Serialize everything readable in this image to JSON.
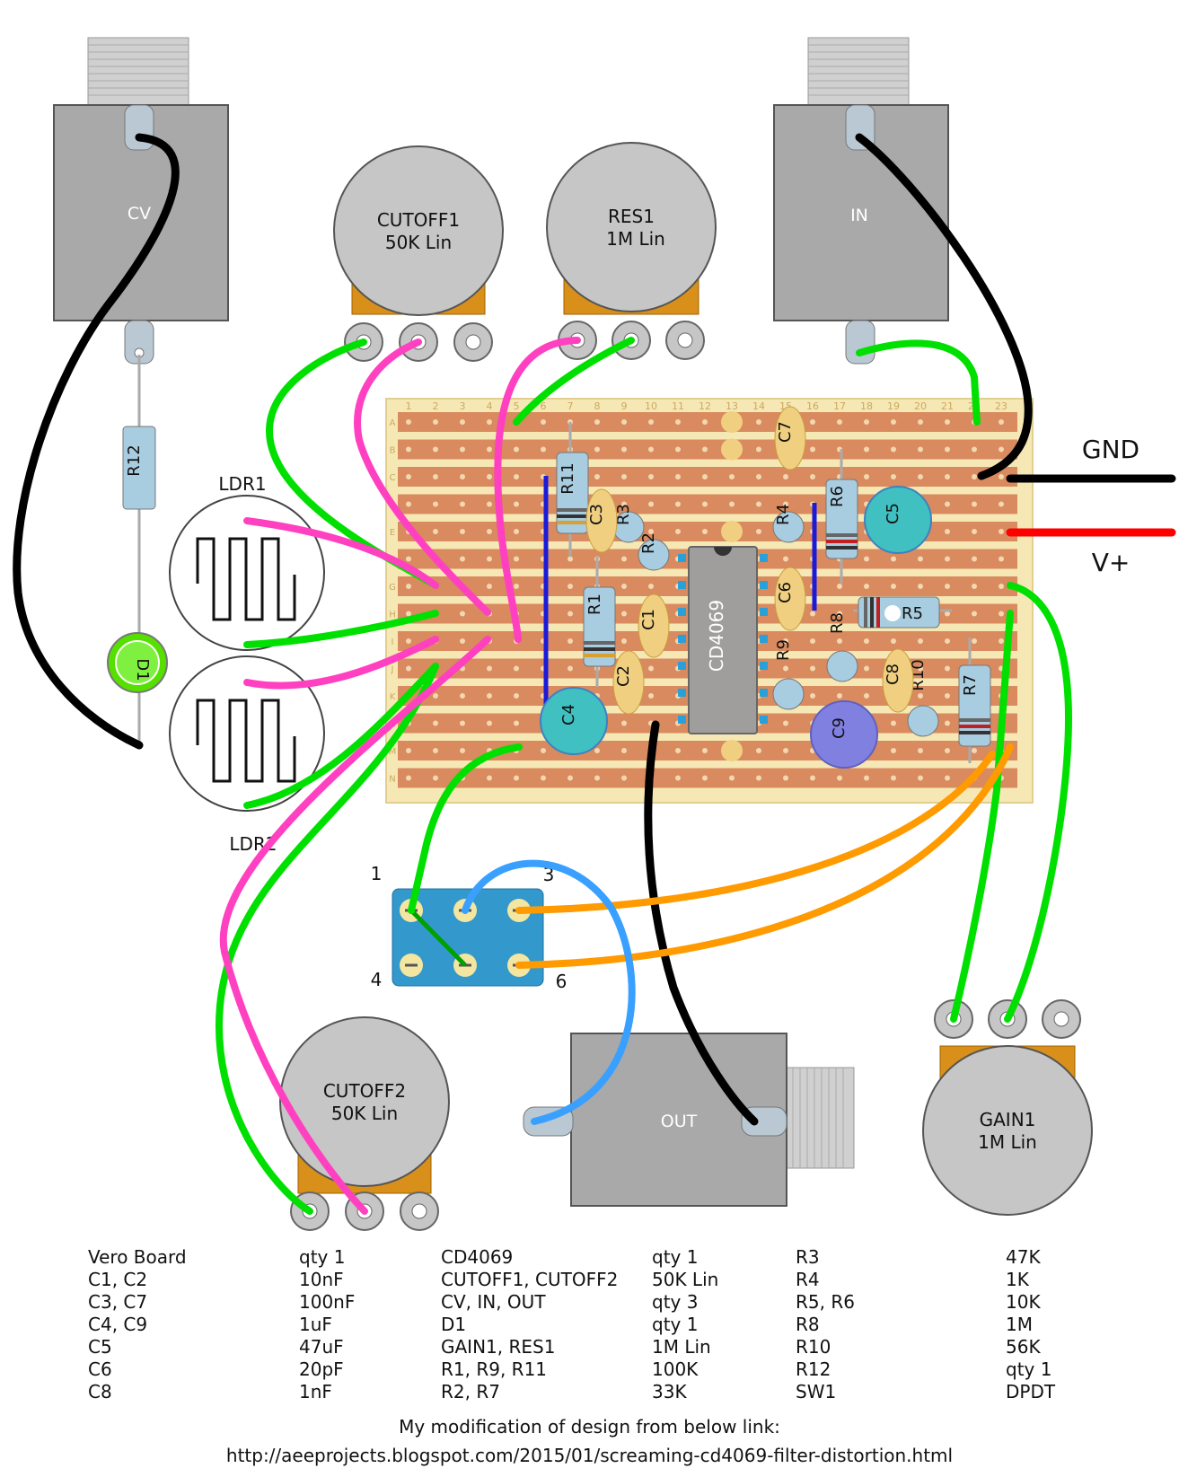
{
  "colors": {
    "board": "#d98a5e",
    "board_border": "#f6e8b5",
    "strip_hole": "#f3d7b0",
    "wire_black": "#000000",
    "wire_red": "#ff0000",
    "wire_green": "#00e000",
    "wire_pink": "#ff40c0",
    "wire_orange": "#ff9a00",
    "wire_blue": "#3aa0ff",
    "link_blue": "#1a1ad8",
    "pot_body": "#c6c6c6",
    "pot_base": "#d9901a",
    "jack": "#a9a9a9",
    "switch": "#3398cc",
    "cap_ceramic": "#f0d080",
    "cap_electrolytic_teal": "#40c0c0",
    "cap_electrolytic_purple": "#8080e0",
    "resistor": "#a8cce0",
    "led": "#55e000",
    "chip": "#a09d9d"
  },
  "board": {
    "row_labels": [
      "A",
      "B",
      "C",
      "D",
      "E",
      "F",
      "G",
      "H",
      "I",
      "J",
      "K",
      "L",
      "M",
      "N"
    ],
    "column_labels": [
      "1",
      "2",
      "3",
      "4",
      "5",
      "6",
      "7",
      "8",
      "9",
      "10",
      "11",
      "12",
      "13",
      "14",
      "15",
      "16",
      "17",
      "18",
      "19",
      "20",
      "21",
      "22",
      "23"
    ]
  },
  "jacks": {
    "cv": {
      "label": "CV"
    },
    "in": {
      "label": "IN"
    },
    "out": {
      "label": "OUT"
    }
  },
  "pots": {
    "cutoff1": {
      "line1": "CUTOFF1",
      "line2": "50K Lin"
    },
    "res1": {
      "line1": "RES1",
      "line2": "1M Lin"
    },
    "cutoff2": {
      "line1": "CUTOFF2",
      "line2": "50K Lin"
    },
    "gain1": {
      "line1": "GAIN1",
      "line2": "1M Lin"
    }
  },
  "ldrs": {
    "ldr1": "LDR1",
    "ldr2": "LDR2"
  },
  "led": {
    "label": "D1"
  },
  "chip": {
    "label": "CD4069"
  },
  "power": {
    "gnd": "GND",
    "vplus": "V+"
  },
  "switch": {
    "pin1": "1",
    "pin3": "3",
    "pin4": "4",
    "pin6": "6"
  },
  "components": {
    "r1": "R1",
    "r2": "R2",
    "r3": "R3",
    "r4": "R4",
    "r5": "R5",
    "r6": "R6",
    "r7": "R7",
    "r8": "R8",
    "r9": "R9",
    "r10": "R10",
    "r11": "R11",
    "r12": "R12",
    "c1": "C1",
    "c2": "C2",
    "c3": "C3",
    "c4": "C4",
    "c5": "C5",
    "c6": "C6",
    "c7": "C7",
    "c8": "C8",
    "c9": "C9"
  },
  "bom": [
    [
      "Vero Board",
      "qty 1",
      "CD4069",
      "qty 1",
      "R3",
      "47K"
    ],
    [
      "C1, C2",
      "10nF",
      "CUTOFF1, CUTOFF2",
      "50K Lin",
      "R4",
      "1K"
    ],
    [
      "C3, C7",
      "100nF",
      "CV, IN, OUT",
      "qty 3",
      "R5, R6",
      "10K"
    ],
    [
      "C4, C9",
      "1uF",
      "D1",
      "qty 1",
      "R8",
      "1M"
    ],
    [
      "C5",
      "47uF",
      "GAIN1, RES1",
      "1M Lin",
      "R10",
      "56K"
    ],
    [
      "C6",
      "20pF",
      "R1, R9, R11",
      "100K",
      "R12",
      "qty 1"
    ],
    [
      "C8",
      "1nF",
      "R2, R7",
      "33K",
      "SW1",
      "DPDT"
    ]
  ],
  "footer": {
    "line1": "My modification of design from below link:",
    "line2": "http://aeeprojects.blogspot.com/2015/01/screaming-cd4069-filter-distortion.html"
  }
}
